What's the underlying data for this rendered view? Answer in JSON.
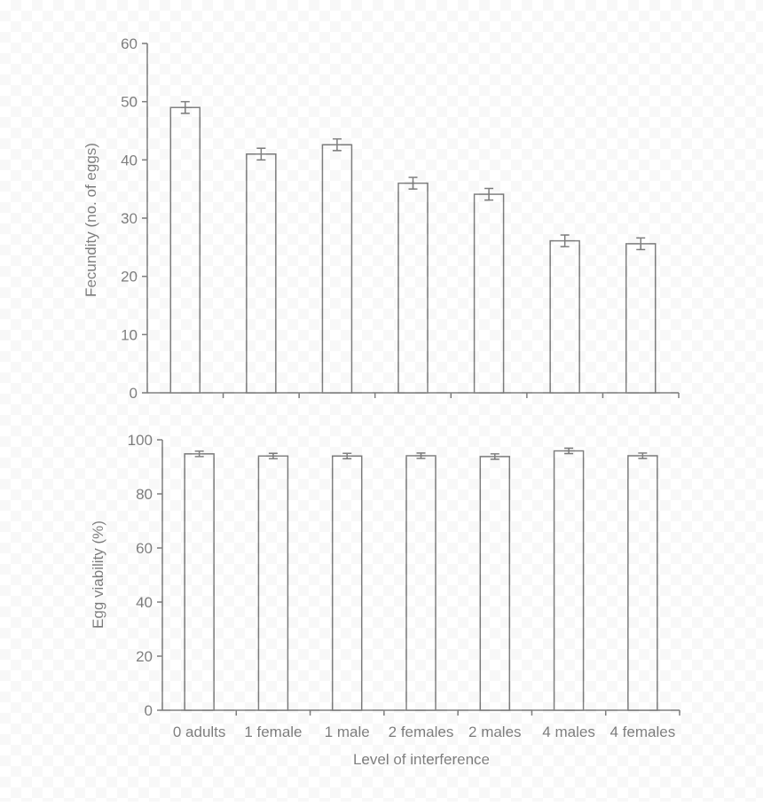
{
  "chart_data": [
    {
      "type": "bar",
      "title": "",
      "xlabel": "",
      "ylabel": "Fecundity (no. of eggs)",
      "ylim": [
        0,
        60
      ],
      "yticks": [
        0,
        10,
        20,
        30,
        40,
        50,
        60
      ],
      "categories": [
        "0 adults",
        "1 female",
        "1 male",
        "2 females",
        "2 males",
        "4 males",
        "4 females"
      ],
      "values": [
        49,
        41,
        42.6,
        36,
        34.1,
        26.1,
        25.6
      ],
      "errors": [
        1.0,
        1.0,
        1.0,
        1.0,
        1.0,
        1.0,
        1.0
      ],
      "show_category_labels": false,
      "grid": false,
      "bar_fill": "#ffffff",
      "bar_stroke": "#000000"
    },
    {
      "type": "bar",
      "title": "",
      "xlabel": "Level of interference",
      "ylabel": "Egg viability (%)",
      "ylim": [
        0,
        100
      ],
      "yticks": [
        0,
        20,
        40,
        60,
        80,
        100
      ],
      "categories": [
        "0 adults",
        "1 female",
        "1 male",
        "2 females",
        "2 males",
        "4 males",
        "4 females"
      ],
      "values": [
        94.8,
        94,
        94,
        94.1,
        93.8,
        95.9,
        94.1
      ],
      "errors": [
        1.0,
        1.0,
        1.0,
        1.0,
        1.0,
        1.0,
        1.0
      ],
      "show_category_labels": true,
      "grid": false,
      "bar_fill": "#ffffff",
      "bar_stroke": "#000000"
    }
  ]
}
